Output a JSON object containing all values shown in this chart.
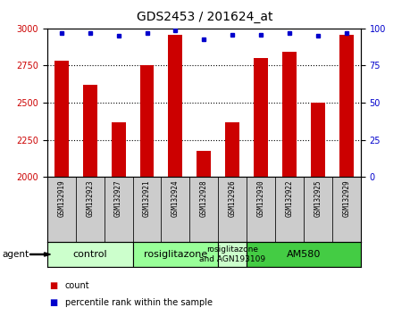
{
  "title": "GDS2453 / 201624_at",
  "samples": [
    "GSM132919",
    "GSM132923",
    "GSM132927",
    "GSM132921",
    "GSM132924",
    "GSM132928",
    "GSM132926",
    "GSM132930",
    "GSM132922",
    "GSM132925",
    "GSM132929"
  ],
  "counts": [
    2780,
    2620,
    2370,
    2750,
    2960,
    2175,
    2370,
    2800,
    2840,
    2500,
    2960
  ],
  "percentiles": [
    97,
    97,
    95,
    97,
    99,
    93,
    96,
    96,
    97,
    95,
    97
  ],
  "ylim_left": [
    2000,
    3000
  ],
  "ylim_right": [
    0,
    100
  ],
  "yticks_left": [
    2000,
    2250,
    2500,
    2750,
    3000
  ],
  "yticks_right": [
    0,
    25,
    50,
    75,
    100
  ],
  "bar_color": "#cc0000",
  "dot_color": "#0000cc",
  "bar_width": 0.5,
  "groups": [
    {
      "label": "control",
      "start": 0,
      "end": 3,
      "color": "#ccffcc"
    },
    {
      "label": "rosiglitazone",
      "start": 3,
      "end": 6,
      "color": "#99ff99"
    },
    {
      "label": "rosiglitazone\nand AGN193109",
      "start": 6,
      "end": 7,
      "color": "#ccffcc"
    },
    {
      "label": "AM580",
      "start": 7,
      "end": 11,
      "color": "#44cc44"
    }
  ],
  "legend_count_label": "count",
  "legend_pct_label": "percentile rank within the sample",
  "agent_label": "agent",
  "title_fontsize": 10,
  "tick_fontsize": 7,
  "label_fontsize": 8,
  "sample_label_color": "#cccccc",
  "sample_box_color": "#cccccc"
}
